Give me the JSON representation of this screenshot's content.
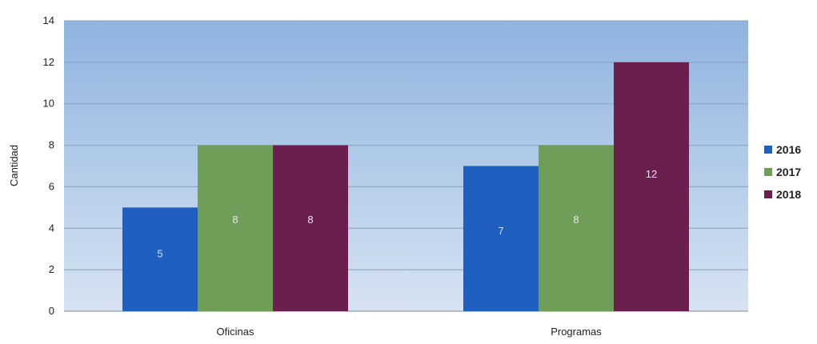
{
  "chart_data": {
    "type": "bar",
    "title": "",
    "xlabel": "",
    "ylabel": "Cantidad",
    "ylim": [
      0,
      14
    ],
    "yticks": [
      0,
      2,
      4,
      6,
      8,
      10,
      12,
      14
    ],
    "grid": true,
    "legend_position": "right",
    "categories": [
      "Oficinas",
      "Programas"
    ],
    "series": [
      {
        "name": "2016",
        "color": "#1f5fbf",
        "values": [
          5,
          7
        ]
      },
      {
        "name": "2017",
        "color": "#6f9e58",
        "values": [
          8,
          8
        ]
      },
      {
        "name": "2018",
        "color": "#6b1f4f",
        "values": [
          8,
          12
        ]
      }
    ],
    "data_labels": true,
    "plot_background": {
      "top": "#8fb4e0",
      "bottom": "#d7e3f3"
    }
  }
}
